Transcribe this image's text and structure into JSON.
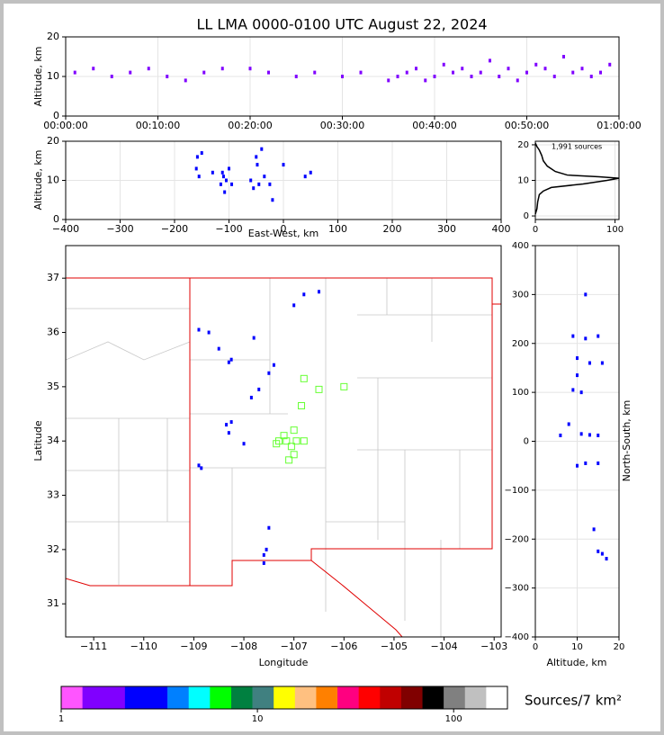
{
  "title": "LL LMA 0000-0100 UTC August 22, 2024",
  "chart_data": [
    {
      "type": "scatter",
      "ylabel": "Altitude, km",
      "color": "#8000ff",
      "grid": true,
      "xlim": [
        0,
        60
      ],
      "ylim": [
        0,
        20
      ],
      "xticks": [
        {
          "value": 0,
          "label": "00:00:00"
        },
        {
          "value": 10,
          "label": "00:10:00"
        },
        {
          "value": 20,
          "label": "00:20:00"
        },
        {
          "value": 30,
          "label": "00:30:00"
        },
        {
          "value": 40,
          "label": "00:40:00"
        },
        {
          "value": 50,
          "label": "00:50:00"
        },
        {
          "value": 60,
          "label": "01:00:00"
        }
      ],
      "yticks": [
        0,
        10,
        20
      ],
      "x": [
        1,
        3,
        5,
        7,
        9,
        11,
        13,
        15,
        17,
        20,
        22,
        25,
        27,
        30,
        32,
        35,
        36,
        37,
        38,
        39,
        40,
        41,
        42,
        43,
        44,
        45,
        46,
        47,
        48,
        49,
        50,
        51,
        52,
        53,
        54,
        55,
        56,
        57,
        58,
        59
      ],
      "y": [
        11,
        12,
        10,
        11,
        12,
        10,
        9,
        11,
        12,
        12,
        11,
        10,
        11,
        10,
        11,
        9,
        10,
        11,
        12,
        9,
        10,
        13,
        11,
        12,
        10,
        11,
        14,
        10,
        12,
        9,
        11,
        13,
        12,
        10,
        15,
        11,
        12,
        10,
        11,
        13
      ]
    },
    {
      "type": "scatter",
      "xlabel": "East-West, km",
      "ylabel": "Altitude, km",
      "color": "#0000ff",
      "grid": true,
      "xlim": [
        -400,
        400
      ],
      "ylim": [
        0,
        20
      ],
      "xticks": [
        {
          "value": -400,
          "label": "−400"
        },
        {
          "value": -300,
          "label": "−300"
        },
        {
          "value": -200,
          "label": "−200"
        },
        {
          "value": -100,
          "label": "−100"
        },
        0,
        100,
        200,
        300,
        400
      ],
      "yticks": [
        0,
        10,
        20
      ],
      "x": [
        -160,
        -158,
        -155,
        -150,
        -130,
        -115,
        -112,
        -110,
        -108,
        -105,
        -100,
        -95,
        -60,
        -55,
        -50,
        -48,
        -45,
        -40,
        -35,
        -25,
        -20,
        0,
        40,
        50
      ],
      "y": [
        13,
        16,
        11,
        17,
        12,
        9,
        12,
        11,
        7,
        10,
        13,
        9,
        10,
        8,
        16,
        14,
        9,
        18,
        11,
        9,
        5,
        14,
        11,
        12
      ]
    },
    {
      "type": "line",
      "annotation": "1,991 sources",
      "color": "#000000",
      "grid": true,
      "xlim": [
        0,
        105
      ],
      "ylim": [
        -1,
        21
      ],
      "xticks": [
        0,
        100
      ],
      "yticks": [
        0,
        10,
        20
      ],
      "x": [
        0,
        2,
        3,
        5,
        10,
        20,
        60,
        90,
        105,
        80,
        40,
        25,
        15,
        10,
        8,
        5,
        2,
        0
      ],
      "y": [
        0.5,
        2,
        4,
        6,
        7,
        8,
        9,
        10,
        10.6,
        11,
        11.5,
        12.5,
        14,
        15.5,
        17,
        18.5,
        19.5,
        20.5
      ]
    },
    {
      "type": "map",
      "xlabel": "Longitude",
      "ylabel": "Latitude",
      "color": "#0000ff",
      "station_color": "#66ff33",
      "xlim": [
        -111.56,
        -102.86
      ],
      "ylim": [
        30.39,
        37.6
      ],
      "xticks": [
        {
          "value": -111,
          "label": "−111"
        },
        {
          "value": -110,
          "label": "−110"
        },
        {
          "value": -109,
          "label": "−109"
        },
        {
          "value": -108,
          "label": "−108"
        },
        {
          "value": -107,
          "label": "−107"
        },
        {
          "value": -106,
          "label": "−106"
        },
        {
          "value": -105,
          "label": "−105"
        },
        {
          "value": -104,
          "label": "−104"
        },
        {
          "value": -103,
          "label": "−103"
        }
      ],
      "yticks": [
        31,
        32,
        33,
        34,
        35,
        36,
        37
      ],
      "x": [
        -108.9,
        -108.85,
        -108.3,
        -108.35,
        -108.25,
        -108.3,
        -108.25,
        -108.5,
        -108.7,
        -108.9,
        -107.8,
        -107.5,
        -107.4,
        -107.7,
        -107.85,
        -108.0,
        -107.6,
        -107.55,
        -107.6,
        -107.5,
        -106.8,
        -106.5,
        -107.0
      ],
      "y": [
        33.55,
        33.5,
        34.15,
        34.3,
        34.35,
        35.45,
        35.5,
        35.7,
        36.0,
        36.05,
        35.9,
        35.25,
        35.4,
        34.95,
        34.8,
        33.95,
        31.9,
        32.0,
        31.75,
        32.4,
        36.7,
        36.75,
        36.5
      ],
      "stations_x": [
        -106.8,
        -106.5,
        -106.0,
        -106.85,
        -107.0,
        -107.2,
        -107.3,
        -107.15,
        -106.95,
        -107.05,
        -107.0,
        -107.1,
        -106.8,
        -107.35
      ],
      "stations_y": [
        35.15,
        34.95,
        35.0,
        34.65,
        34.2,
        34.1,
        34.0,
        34.0,
        34.0,
        33.9,
        33.75,
        33.65,
        34.0,
        33.95
      ]
    },
    {
      "type": "scatter",
      "xlabel": "Altitude, km",
      "ylabel": "North-South, km",
      "color": "#0000ff",
      "grid": true,
      "xlim": [
        0,
        20
      ],
      "ylim": [
        -400,
        400
      ],
      "xticks": [
        0,
        10,
        20
      ],
      "yticks": [
        {
          "value": -400,
          "label": "−400"
        },
        {
          "value": -300,
          "label": "−300"
        },
        {
          "value": -200,
          "label": "−200"
        },
        {
          "value": -100,
          "label": "−100"
        },
        0,
        100,
        200,
        300,
        400
      ],
      "x": [
        9,
        12,
        15,
        10,
        13,
        16,
        10,
        9,
        11,
        8,
        11,
        13,
        15,
        6,
        12,
        15,
        10,
        16,
        15,
        17,
        12,
        14
      ],
      "y": [
        215,
        210,
        215,
        170,
        160,
        160,
        135,
        105,
        100,
        35,
        15,
        13,
        12,
        12,
        -45,
        -45,
        -50,
        -230,
        -225,
        -240,
        300,
        -180
      ]
    },
    {
      "type": "colorbar",
      "label": "Sources/7 km²",
      "log": true,
      "clim": [
        1,
        188
      ],
      "ticks": [
        1,
        10,
        100
      ],
      "colors": [
        "#ff55ff",
        "#8000ff",
        "#8000ff",
        "#0000ff",
        "#0000ff",
        "#0080ff",
        "#00ffff",
        "#00ff00",
        "#008040",
        "#408080",
        "#ffff00",
        "#ffc080",
        "#ff8000",
        "#ff0080",
        "#ff0000",
        "#c00000",
        "#800000",
        "#000000",
        "#808080",
        "#c0c0c0",
        "#ffffff"
      ]
    }
  ]
}
